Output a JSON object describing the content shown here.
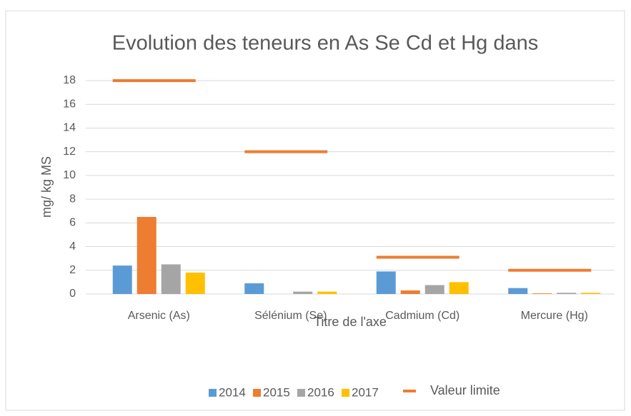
{
  "chart_data": {
    "type": "bar",
    "title": "Evolution des teneurs en As Se Cd et Hg dans",
    "xlabel": "Titre de l'axe",
    "ylabel": "mg/ kg MS",
    "categories": [
      "Arsenic (As)",
      "Sélénium (Se)",
      "Cadmium (Cd)",
      "Mercure (Hg)"
    ],
    "series": [
      {
        "name": "2014",
        "color": "#5b9bd5",
        "values": [
          2.4,
          0.9,
          1.9,
          0.5
        ]
      },
      {
        "name": "2015",
        "color": "#ed7d31",
        "values": [
          6.5,
          0,
          0.3,
          0.05
        ]
      },
      {
        "name": "2016",
        "color": "#a5a5a5",
        "values": [
          2.5,
          0.2,
          0.75,
          0.1
        ]
      },
      {
        "name": "2017",
        "color": "#ffc000",
        "values": [
          1.8,
          0.2,
          1.0,
          0.1
        ]
      },
      {
        "name": "Valeur limite",
        "color": "#ed7d31",
        "style": "dash",
        "values": [
          18,
          12,
          3.1,
          2.0
        ]
      }
    ],
    "ylim": [
      0,
      18
    ],
    "yticks": [
      0,
      2,
      4,
      6,
      8,
      10,
      12,
      14,
      16,
      18
    ],
    "grid": true,
    "legend": "bottom"
  }
}
